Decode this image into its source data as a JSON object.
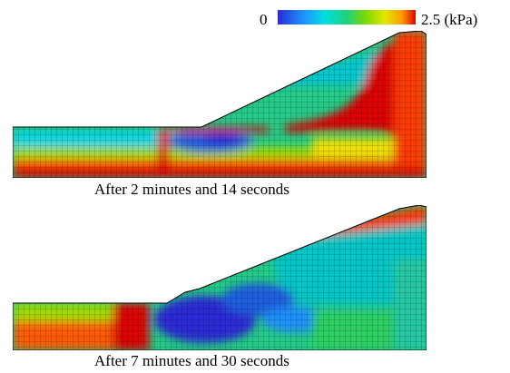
{
  "colorbar": {
    "min_label": "0",
    "max_label": "2.5 (kPa)",
    "colors": [
      "#2a2ad8",
      "#1e90ff",
      "#00e0e0",
      "#20d07a",
      "#7fd800",
      "#e6e600",
      "#ff9a00",
      "#e00000"
    ]
  },
  "panels": [
    {
      "caption": "After 2 minutes and 14 seconds"
    },
    {
      "caption": "After 7 minutes and 30 seconds"
    }
  ]
}
